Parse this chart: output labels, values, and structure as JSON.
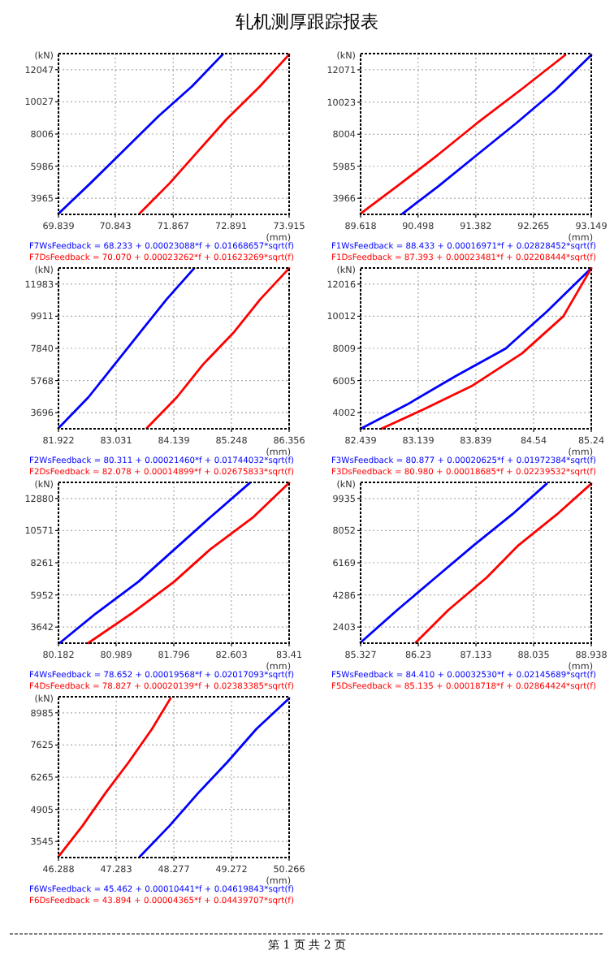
{
  "chart_data": [
    {
      "type": "line",
      "title": "轧机测厚跟踪报表",
      "xlabel": "(mm)",
      "ylabel": "(kN)",
      "xlim": [
        69.839,
        73.915
      ],
      "ylim": [
        2955,
        13057
      ],
      "xticks": [
        69.839,
        70.843,
        71.867,
        72.891,
        73.915
      ],
      "yticks": [
        3965,
        5986,
        8006,
        10027,
        12047
      ],
      "grid": true,
      "legend": "bottom",
      "marker": "none",
      "line_style": "solid",
      "series": [
        {
          "name": "F7WsFeedback = 68.233 + 0.00023088*f + 0.01668657*sqrt(f)",
          "color": "#0000ff",
          "x": [
            69.839,
            70.4,
            71.0,
            71.6,
            72.2,
            72.74
          ],
          "values": [
            3000,
            4900,
            7000,
            9100,
            11000,
            13000
          ]
        },
        {
          "name": "F7DsFeedback = 70.070 + 0.00023262*f + 0.01623269*sqrt(f)",
          "color": "#ff0000",
          "x": [
            71.27,
            71.8,
            72.3,
            72.8,
            73.4,
            73.915
          ],
          "values": [
            3000,
            4900,
            6900,
            8900,
            11000,
            13000
          ]
        }
      ]
    },
    {
      "type": "line",
      "xlabel": "(mm)",
      "ylabel": "(kN)",
      "xlim": [
        89.618,
        93.149
      ],
      "ylim": [
        2950,
        13090
      ],
      "xticks": [
        89.618,
        90.498,
        91.382,
        92.265,
        93.149
      ],
      "yticks": [
        3966,
        5985,
        8004,
        10023,
        12071
      ],
      "grid": true,
      "legend": "bottom",
      "marker": "none",
      "line_style": "solid",
      "series": [
        {
          "name": "F1WsFeedback = 88.433 + 0.00016971*f + 0.02828452*sqrt(f)",
          "color": "#0000ff",
          "x": [
            90.26,
            90.8,
            91.4,
            92.0,
            92.6,
            93.149
          ],
          "values": [
            3000,
            4700,
            6700,
            8700,
            10800,
            13000
          ]
        },
        {
          "name": "F1DsFeedback = 87.393 + 0.00023481*f + 0.02208444*sqrt(f)",
          "color": "#ff0000",
          "x": [
            89.618,
            90.2,
            90.8,
            91.4,
            92.1,
            92.75
          ],
          "values": [
            3000,
            4800,
            6700,
            8700,
            10900,
            13000
          ]
        }
      ]
    },
    {
      "type": "line",
      "xlabel": "(mm)",
      "ylabel": "(kN)",
      "xlim": [
        81.922,
        86.356
      ],
      "ylim": [
        2660,
        13019
      ],
      "xticks": [
        81.922,
        83.031,
        84.139,
        85.248,
        86.356
      ],
      "yticks": [
        3696,
        5768,
        7840,
        9911,
        11983
      ],
      "grid": true,
      "legend": "bottom",
      "marker": "none",
      "line_style": "solid",
      "series": [
        {
          "name": "F2WsFeedback = 80.311 + 0.00021460*f + 0.01744032*sqrt(f)",
          "color": "#0000ff",
          "x": [
            81.922,
            82.5,
            83.0,
            83.5,
            84.0,
            84.53
          ],
          "values": [
            2700,
            4700,
            6800,
            8900,
            11000,
            13000
          ]
        },
        {
          "name": "F2DsFeedback = 82.078 + 0.00014899*f + 0.02675833*sqrt(f)",
          "color": "#ff0000",
          "x": [
            83.62,
            84.2,
            84.7,
            85.3,
            85.8,
            86.356
          ],
          "values": [
            2700,
            4700,
            6800,
            8900,
            11000,
            13000
          ]
        }
      ]
    },
    {
      "type": "line",
      "xlabel": "(mm)",
      "ylabel": "(kN)",
      "xlim": [
        82.439,
        85.24
      ],
      "ylim": [
        3000,
        13018
      ],
      "xticks": [
        82.439,
        83.139,
        83.839,
        84.54,
        85.24
      ],
      "yticks": [
        4002,
        6005,
        8009,
        10012,
        12016
      ],
      "grid": true,
      "legend": "bottom",
      "marker": "none",
      "line_style": "solid",
      "series": [
        {
          "name": "F3WsFeedback = 80.877 + 0.00020625*f + 0.01972384*sqrt(f)",
          "color": "#0000ff",
          "x": [
            82.439,
            83.0,
            83.6,
            84.2,
            84.7,
            85.24
          ],
          "values": [
            3000,
            4500,
            6300,
            8000,
            10300,
            13000
          ]
        },
        {
          "name": "F3DsFeedback = 80.980 + 0.00018685*f + 0.02239532*sqrt(f)",
          "color": "#ff0000",
          "x": [
            82.69,
            83.2,
            83.8,
            84.4,
            84.9,
            85.24
          ],
          "values": [
            3000,
            4200,
            5700,
            7700,
            10000,
            13000
          ]
        }
      ]
    },
    {
      "type": "line",
      "xlabel": "(mm)",
      "ylabel": "(kN)",
      "xlim": [
        80.182,
        83.41
      ],
      "ylim": [
        2487,
        14035
      ],
      "xticks": [
        80.182,
        80.989,
        81.796,
        82.603,
        83.41
      ],
      "yticks": [
        3642,
        5952,
        8261,
        10571,
        12880
      ],
      "grid": true,
      "legend": "bottom",
      "marker": "none",
      "line_style": "solid",
      "series": [
        {
          "name": "F4WsFeedback = 78.652 + 0.00019568*f + 0.02017093*sqrt(f)",
          "color": "#0000ff",
          "x": [
            80.2,
            80.7,
            81.3,
            81.8,
            82.3,
            82.86
          ],
          "values": [
            2500,
            4600,
            6900,
            9200,
            11500,
            14000
          ]
        },
        {
          "name": "F4DsFeedback = 78.827 + 0.00020139*f + 0.02383385*sqrt(f)",
          "color": "#ff0000",
          "x": [
            80.6,
            81.2,
            81.8,
            82.3,
            82.9,
            83.41
          ],
          "values": [
            2500,
            4600,
            6900,
            9200,
            11500,
            14000
          ]
        }
      ]
    },
    {
      "type": "line",
      "xlabel": "(mm)",
      "ylabel": "(kN)",
      "xlim": [
        85.327,
        88.938
      ],
      "ylim": [
        1461,
        10877
      ],
      "xticks": [
        85.327,
        86.23,
        87.133,
        88.035,
        88.938
      ],
      "yticks": [
        2403,
        4286,
        6169,
        8052,
        9935
      ],
      "grid": true,
      "legend": "bottom",
      "marker": "none",
      "line_style": "solid",
      "series": [
        {
          "name": "F5WsFeedback = 84.410 + 0.00032530*f + 0.02145689*sqrt(f)",
          "color": "#0000ff",
          "x": [
            85.327,
            85.9,
            86.5,
            87.1,
            87.7,
            88.24
          ],
          "values": [
            1500,
            3400,
            5300,
            7200,
            9000,
            10800
          ]
        },
        {
          "name": "F5DsFeedback = 85.135 + 0.00018718*f + 0.02864424*sqrt(f)",
          "color": "#ff0000",
          "x": [
            86.19,
            86.7,
            87.3,
            87.8,
            88.4,
            88.938
          ],
          "values": [
            1500,
            3400,
            5300,
            7200,
            9000,
            10800
          ]
        }
      ]
    },
    {
      "type": "line",
      "xlabel": "(mm)",
      "ylabel": "(kN)",
      "xlim": [
        46.288,
        50.266
      ],
      "ylim": [
        2865,
        9665
      ],
      "xticks": [
        46.288,
        47.283,
        48.277,
        49.272,
        50.266
      ],
      "yticks": [
        3545,
        4905,
        6265,
        7625,
        8985
      ],
      "grid": true,
      "legend": "bottom",
      "marker": "none",
      "line_style": "solid",
      "annotations": [
        "第 1 页 共 2 页"
      ],
      "series": [
        {
          "name": "F6WsFeedback = 45.462 + 0.00010441*f + 0.04619843*sqrt(f)",
          "color": "#0000ff",
          "x": [
            47.69,
            48.2,
            48.7,
            49.2,
            49.7,
            50.266
          ],
          "values": [
            2900,
            4200,
            5600,
            6900,
            8300,
            9600
          ]
        },
        {
          "name": "F6DsFeedback = 43.894 + 0.00004365*f + 0.04439707*sqrt(f)",
          "color": "#ff0000",
          "x": [
            46.288,
            46.7,
            47.1,
            47.5,
            47.9,
            48.22
          ],
          "values": [
            2900,
            4200,
            5600,
            6900,
            8300,
            9600
          ]
        }
      ]
    }
  ]
}
